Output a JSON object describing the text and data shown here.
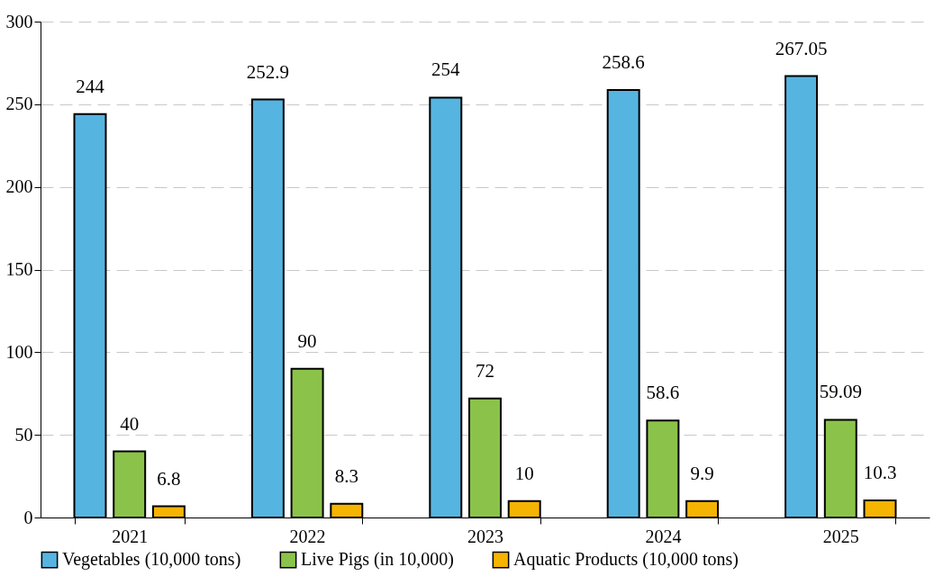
{
  "chart_data": {
    "type": "bar",
    "categories": [
      "2021",
      "2022",
      "2023",
      "2024",
      "2025"
    ],
    "series": [
      {
        "name": "Vegetables (10,000 tons)",
        "color": "#56b4e0",
        "values": [
          244,
          252.9,
          254,
          258.6,
          267.05
        ]
      },
      {
        "name": "Live Pigs (in 10,000)",
        "color": "#8bc34a",
        "values": [
          40,
          90,
          72,
          58.6,
          59.09
        ]
      },
      {
        "name": "Aquatic Products (10,000 tons)",
        "color": "#f5b400",
        "values": [
          6.8,
          8.3,
          10,
          9.9,
          10.3
        ]
      }
    ],
    "ylim": [
      0,
      300
    ],
    "yticks": [
      0,
      50,
      100,
      150,
      200,
      250,
      300
    ],
    "grid": "y",
    "legend": "bottom",
    "data_labels": true
  }
}
